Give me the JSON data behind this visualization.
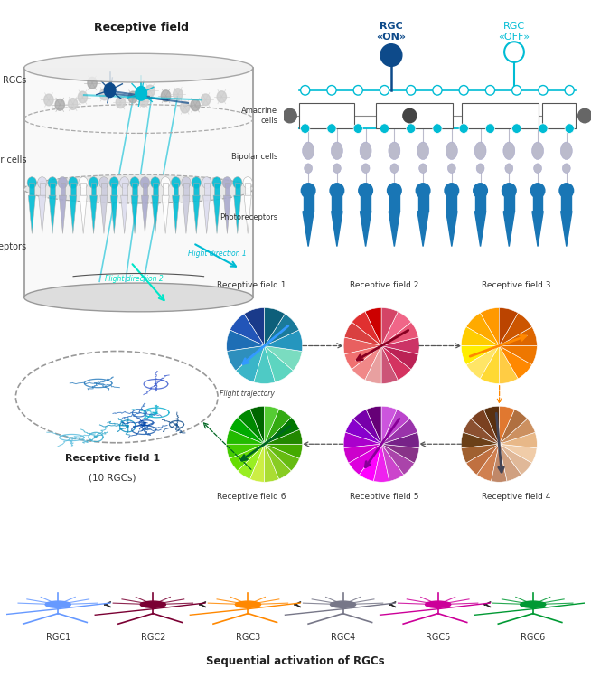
{
  "title_top_left": "Receptive field",
  "label_rgcs": "RGCs",
  "label_bipolar": "Bipolar cells",
  "label_photoreceptors": "Photoreceptors",
  "label_amacrine": "Amacrine\ncells",
  "label_rgc_on": "RGC\n«ON»",
  "label_rgc_off": "RGC\n«OFF»",
  "label_fd1": "Flight direction 1",
  "label_fd2": "Flight direction 2",
  "label_rf1_title": "Receptive field 1",
  "label_rf1_sub": "(10 RGCs)",
  "label_flight_traj": "Flight trajectory",
  "label_seq": "Sequential activation of RGCs",
  "pie1_colors": [
    "#1a3a8a",
    "#2255b8",
    "#1e6eb5",
    "#2e8fbd",
    "#3ab5c8",
    "#4ecac5",
    "#5dd5c0",
    "#7adcc0",
    "#2596be",
    "#1a7a9a",
    "#0d5f7a"
  ],
  "pie2_colors": [
    "#cc0000",
    "#e03030",
    "#d94040",
    "#e86060",
    "#f07070",
    "#f08888",
    "#e8a0a0",
    "#cc5577",
    "#d43360",
    "#bb2255",
    "#cc3366",
    "#e85577",
    "#f06688",
    "#d44466"
  ],
  "pie3_colors": [
    "#ff9900",
    "#ffaa00",
    "#ffcc00",
    "#ffee00",
    "#ffe566",
    "#ffd933",
    "#ffcc44",
    "#ff8800",
    "#ee7700",
    "#dd6600",
    "#cc5500",
    "#bb4400"
  ],
  "pie4_colors": [
    "#5a3010",
    "#7a4020",
    "#8b5030",
    "#6b4018",
    "#a06030",
    "#c07040",
    "#d08050",
    "#c08868",
    "#d0a080",
    "#e0b898",
    "#f0cca8",
    "#e8b888",
    "#cc9060",
    "#b07040",
    "#e07830"
  ],
  "pie5_colors": [
    "#660077",
    "#7700aa",
    "#8800cc",
    "#aa00cc",
    "#cc00cc",
    "#dd00dd",
    "#ff00ff",
    "#ee22ee",
    "#cc44cc",
    "#aa44aa",
    "#883388",
    "#772288",
    "#9933aa",
    "#bb44cc",
    "#cc55dd"
  ],
  "pie6_colors": [
    "#006600",
    "#008800",
    "#00aa00",
    "#22bb00",
    "#44cc00",
    "#66dd00",
    "#99ee22",
    "#ccee44",
    "#aadd33",
    "#88cc22",
    "#66bb11",
    "#44aa00",
    "#228800",
    "#007700",
    "#33aa11",
    "#55cc33"
  ],
  "rgc_colors": [
    "#6699ff",
    "#7a0033",
    "#ff8800",
    "#777788",
    "#cc0099",
    "#009933"
  ],
  "rgc_labels": [
    "RGC1",
    "RGC2",
    "RGC3",
    "RGC4",
    "RGC5",
    "RGC6"
  ],
  "teal": "#00bcd4",
  "teal2": "#00e5c8",
  "blue_cell": "#1976b5",
  "blue_dark": "#0d4a8a",
  "gray_cell": "#bbbbcc",
  "gray_light": "#ddddee",
  "pie_arrow_angles": [
    220,
    210,
    20,
    275,
    235,
    215
  ],
  "pie_arrow_colors": [
    "#3399ff",
    "#880022",
    "#ff8800",
    "#444455",
    "#880099",
    "#006622"
  ],
  "pie_labels_top": [
    "Receptive field 1",
    "Receptive field 2",
    "Receptive field 3"
  ],
  "pie_labels_bot": [
    "Receptive field 6",
    "Receptive field 5",
    "Receptive field 4"
  ]
}
